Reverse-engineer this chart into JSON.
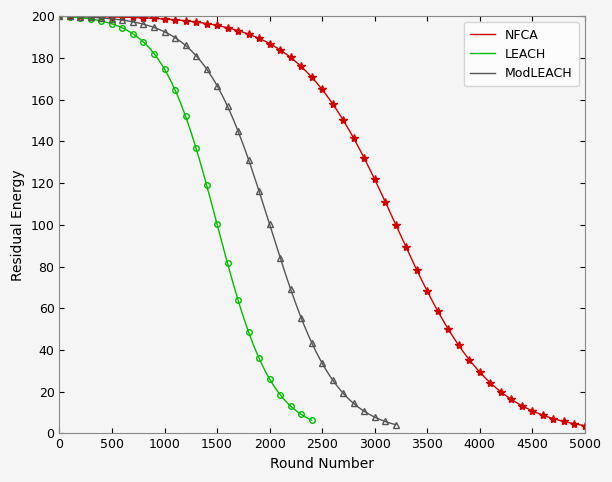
{
  "title": "",
  "xlabel": "Round Number",
  "ylabel": "Residual Energy",
  "xlim": [
    0,
    5000
  ],
  "ylim": [
    0,
    200
  ],
  "xticks": [
    0,
    500,
    1000,
    1500,
    2000,
    2500,
    3000,
    3500,
    4000,
    4500,
    5000
  ],
  "yticks": [
    0,
    20,
    40,
    60,
    80,
    100,
    120,
    140,
    160,
    180,
    200
  ],
  "series": {
    "NFCA": {
      "color": "#cc0000",
      "marker": "*",
      "marker_size": 6,
      "linewidth": 1.0,
      "markevery": 100,
      "x_max": 5000,
      "inflection": 3200,
      "steepness": 0.0022,
      "start": 200
    },
    "LEACH": {
      "color": "#00bb00",
      "marker": "o",
      "marker_size": 4,
      "linewidth": 1.0,
      "markevery": 100,
      "x_max": 2400,
      "inflection": 1500,
      "steepness": 0.0038,
      "start": 200
    },
    "ModLEACH": {
      "color": "#555555",
      "marker": "^",
      "marker_size": 5,
      "linewidth": 1.0,
      "markevery": 100,
      "x_max": 3200,
      "inflection": 2000,
      "steepness": 0.0032,
      "start": 200
    }
  },
  "legend_loc": "upper right",
  "background_color": "#f5f5f5",
  "figsize": [
    6.12,
    4.82
  ],
  "dpi": 100
}
